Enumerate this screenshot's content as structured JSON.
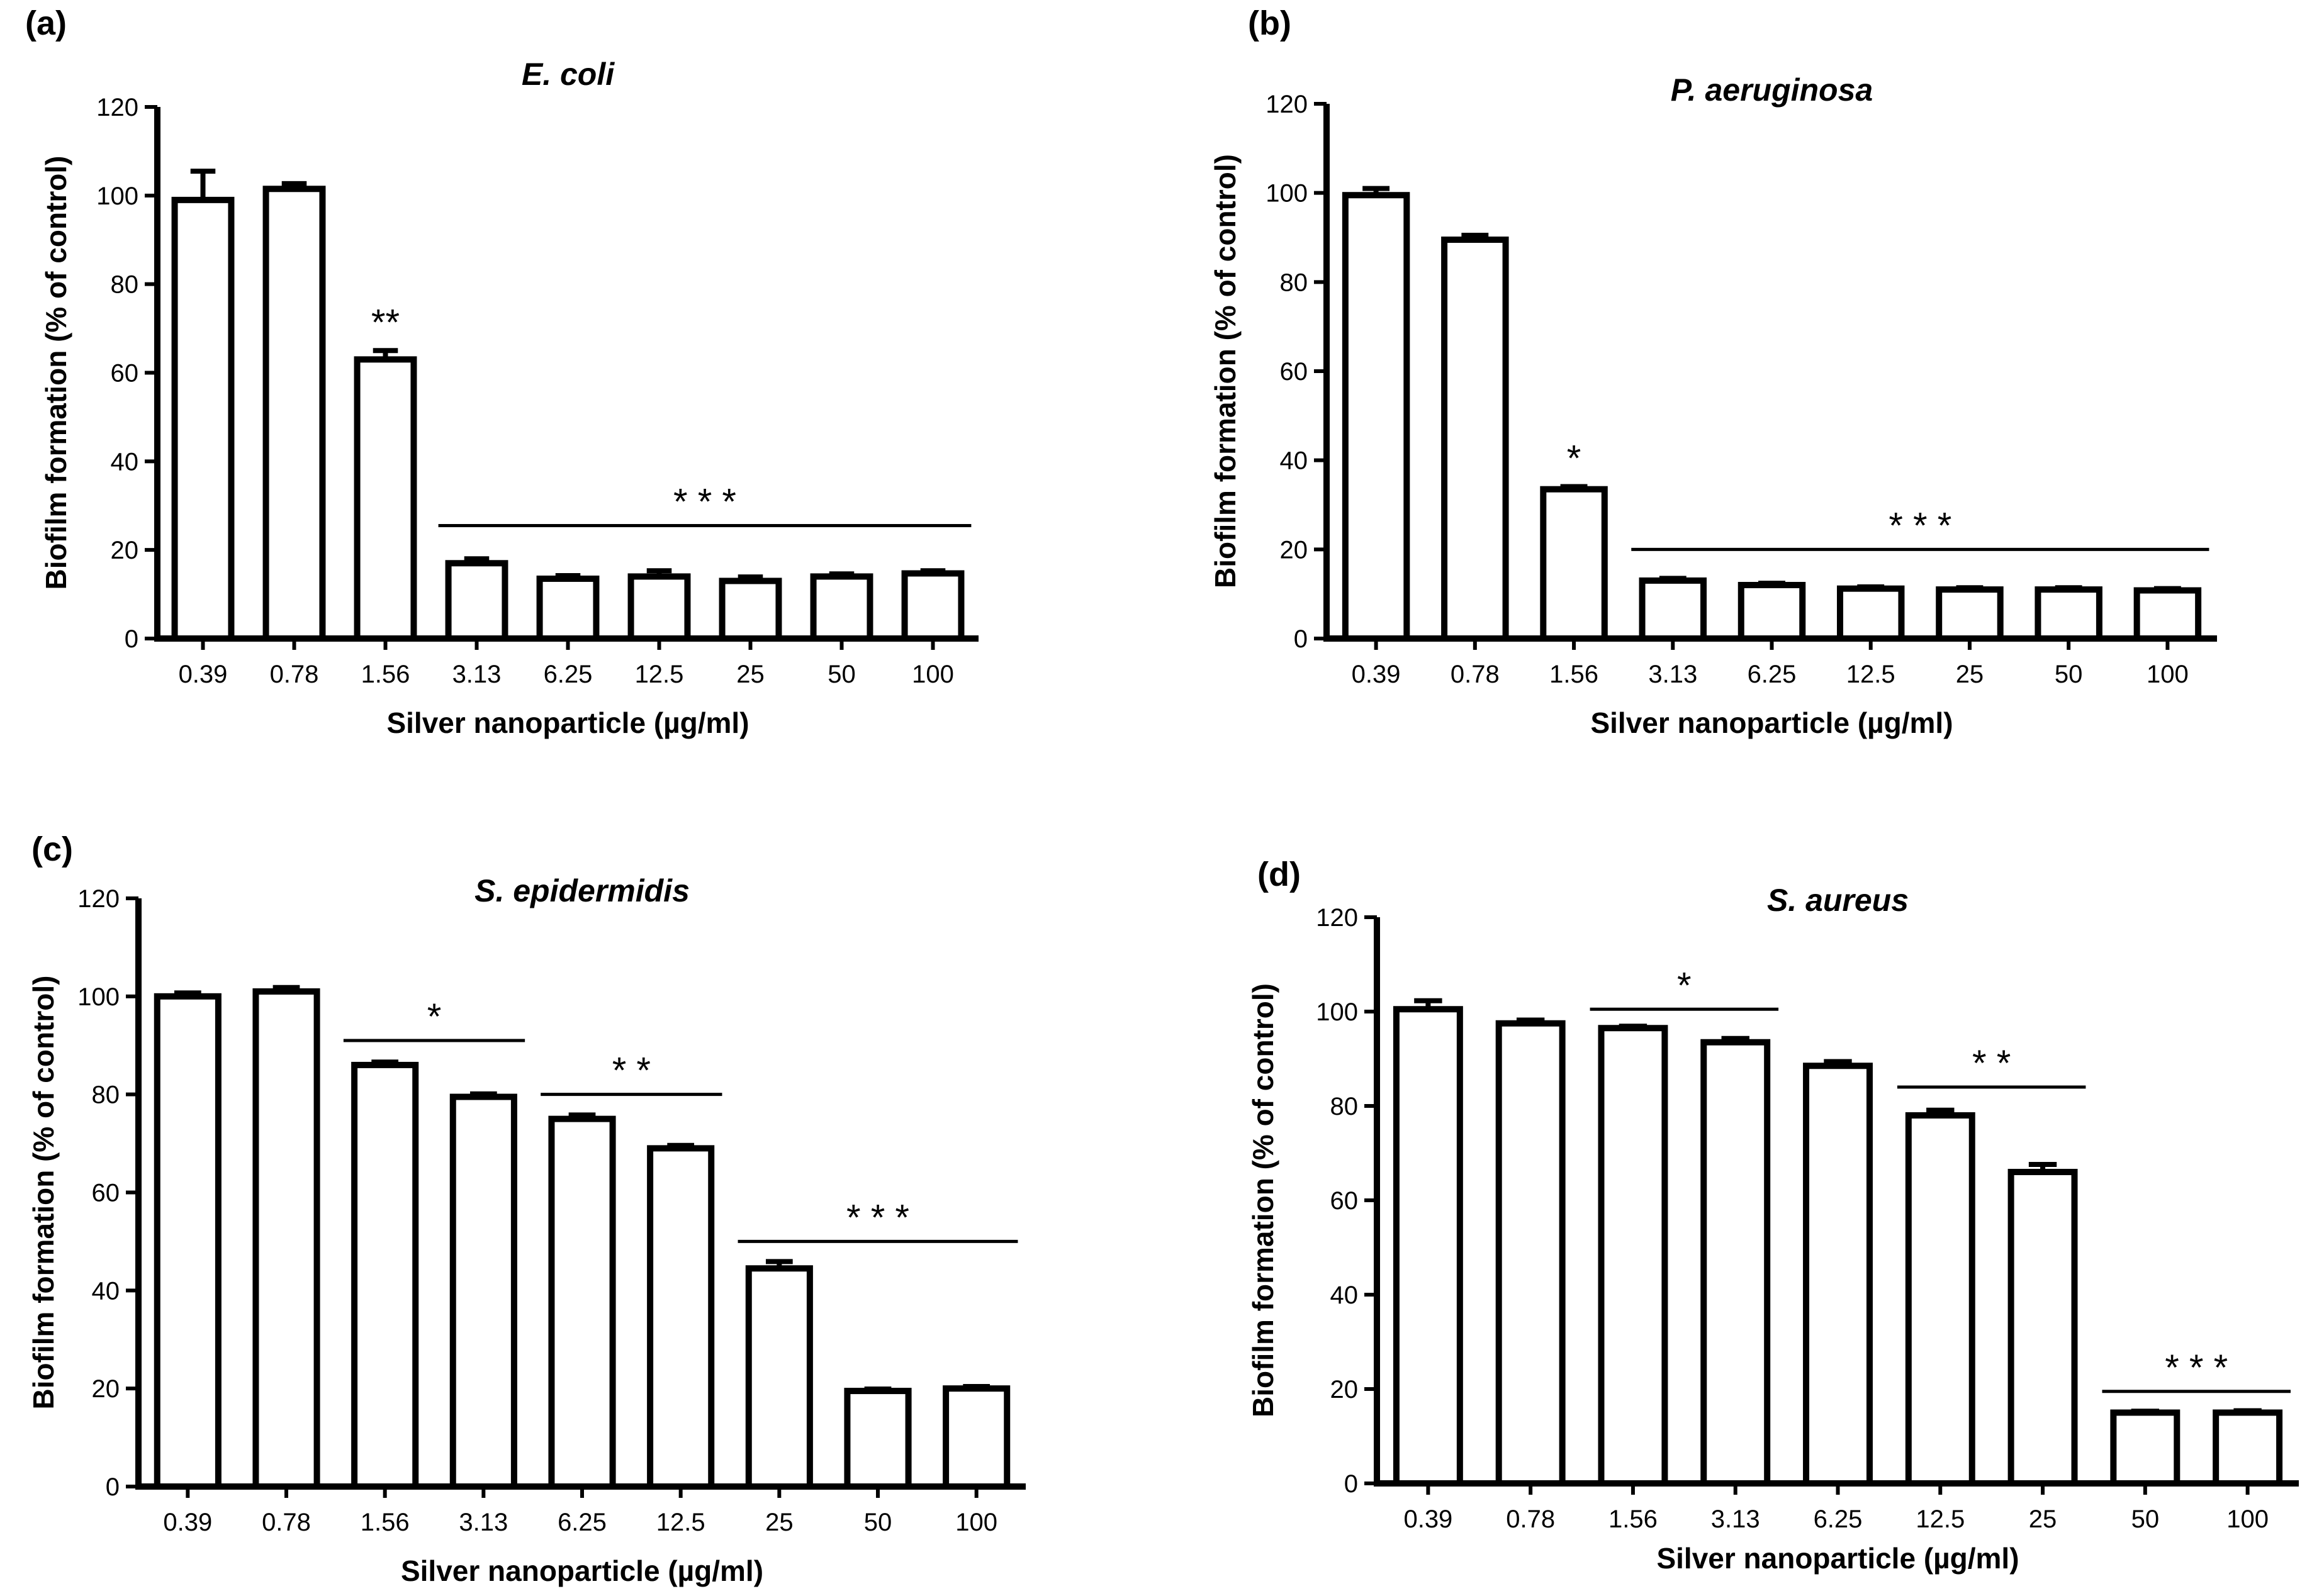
{
  "chart_data": [
    {
      "type": "bar",
      "panel_label": "(a)",
      "title": "E. coli",
      "xlabel": "Silver nanoparticle (µg/ml)",
      "ylabel": "Biofilm formation (% of control)",
      "ylim": [
        0,
        120
      ],
      "yticks": [
        "0",
        "20",
        "40",
        "60",
        "80",
        "100",
        "120"
      ],
      "categories": [
        "0.39",
        "0.78",
        "1.56",
        "3.13",
        "6.25",
        "12.5",
        "25",
        "50",
        "100"
      ],
      "values": [
        99,
        101.5,
        63,
        17,
        13.5,
        14,
        13,
        14,
        14.7
      ],
      "errors": [
        6.5,
        1.2,
        2,
        1,
        0.7,
        1.3,
        0.9,
        0.6,
        0.6
      ],
      "significance": [
        {
          "label": "**",
          "from": 2,
          "to": 2,
          "line": false
        },
        {
          "label": "* * *",
          "from": 3,
          "to": 8,
          "line": true,
          "y": 25.5
        }
      ]
    },
    {
      "type": "bar",
      "panel_label": "(b)",
      "title": "P. aeruginosa",
      "xlabel": "Silver nanoparticle (µg/ml)",
      "ylabel": "Biofilm formation (% of control)",
      "ylim": [
        0,
        120
      ],
      "yticks": [
        "0",
        "20",
        "40",
        "60",
        "80",
        "100",
        "120"
      ],
      "categories": [
        "0.39",
        "0.78",
        "1.56",
        "3.13",
        "6.25",
        "12.5",
        "25",
        "50",
        "100"
      ],
      "values": [
        99.5,
        89.5,
        33.5,
        13,
        12,
        11.2,
        11,
        11,
        10.8
      ],
      "errors": [
        1.5,
        1,
        0.6,
        0.5,
        0.4,
        0.4,
        0.4,
        0.4,
        0.4
      ],
      "significance": [
        {
          "label": "*",
          "from": 2,
          "to": 2,
          "line": false
        },
        {
          "label": "* * *",
          "from": 3,
          "to": 8,
          "line": true,
          "y": 20
        }
      ]
    },
    {
      "type": "bar",
      "panel_label": "(c)",
      "title": "S. epidermidis",
      "xlabel": "Silver nanoparticle (µg/ml)",
      "ylabel": "Biofilm formation (% of control)",
      "ylim": [
        0,
        120
      ],
      "yticks": [
        "0",
        "20",
        "40",
        "60",
        "80",
        "100",
        "120"
      ],
      "categories": [
        "0.39",
        "0.78",
        "1.56",
        "3.13",
        "6.25",
        "12.5",
        "25",
        "50",
        "100"
      ],
      "values": [
        100,
        101,
        86,
        79.5,
        75,
        69,
        44.5,
        19.5,
        20
      ],
      "errors": [
        0.7,
        0.8,
        0.6,
        0.6,
        0.8,
        0.6,
        1.4,
        0.4,
        0.4
      ],
      "significance": [
        {
          "label": "*",
          "from": 2,
          "to": 3,
          "line": true,
          "y": 91
        },
        {
          "label": "* *",
          "from": 4,
          "to": 5,
          "line": true,
          "y": 80
        },
        {
          "label": "* * *",
          "from": 6,
          "to": 8,
          "line": true,
          "y": 50
        }
      ]
    },
    {
      "type": "bar",
      "panel_label": "(d)",
      "title": "S. aureus",
      "xlabel": "Silver nanoparticle (µg/ml)",
      "ylabel": "Biofilm formation (% of control)",
      "ylim": [
        0,
        120
      ],
      "yticks": [
        "0",
        "20",
        "40",
        "60",
        "80",
        "100",
        "120"
      ],
      "categories": [
        "0.39",
        "0.78",
        "1.56",
        "3.13",
        "6.25",
        "12.5",
        "25",
        "50",
        "100"
      ],
      "values": [
        100.5,
        97.5,
        96.5,
        93.5,
        88.5,
        78,
        66,
        15,
        15
      ],
      "errors": [
        1.8,
        0.7,
        0.4,
        0.8,
        0.9,
        1.1,
        1.6,
        0.3,
        0.4
      ],
      "significance": [
        {
          "label": "*",
          "from": 2,
          "to": 3,
          "line": true,
          "y": 100.5
        },
        {
          "label": "* *",
          "from": 5,
          "to": 6,
          "line": true,
          "y": 84
        },
        {
          "label": "* * *",
          "from": 7,
          "to": 8,
          "line": true,
          "y": 19.5
        }
      ]
    }
  ]
}
